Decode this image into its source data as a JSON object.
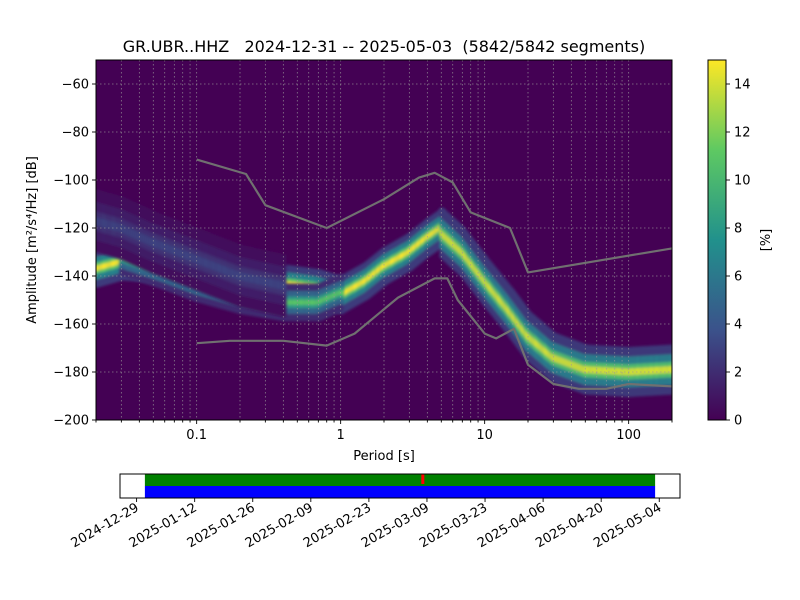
{
  "chart_data": [
    {
      "type": "heatmap",
      "title": "GR.UBR..HHZ   2024-12-31 -- 2025-05-03  (5842/5842 segments)",
      "xlabel": "Period [s]",
      "ylabel": "Amplitude [m²/s⁴/Hz] [dB]",
      "x_scale": "log",
      "xlim": [
        0.02,
        200
      ],
      "ylim": [
        -200,
        -50
      ],
      "x_ticks": [
        {
          "value": 0.1,
          "label": "0.1"
        },
        {
          "value": 1,
          "label": "1"
        },
        {
          "value": 10,
          "label": "10"
        },
        {
          "value": 100,
          "label": "100"
        }
      ],
      "y_ticks": [
        {
          "value": -60,
          "label": "−60"
        },
        {
          "value": -80,
          "label": "−80"
        },
        {
          "value": -100,
          "label": "−100"
        },
        {
          "value": -120,
          "label": "−120"
        },
        {
          "value": -140,
          "label": "−140"
        },
        {
          "value": -160,
          "label": "−160"
        },
        {
          "value": -180,
          "label": "−180"
        },
        {
          "value": -200,
          "label": "−200"
        }
      ],
      "grid": true,
      "colorbar": {
        "label": "[%]",
        "range": [
          0,
          15
        ],
        "ticks": [
          {
            "value": 0,
            "label": "0"
          },
          {
            "value": 2,
            "label": "2"
          },
          {
            "value": 4,
            "label": "4"
          },
          {
            "value": 6,
            "label": "6"
          },
          {
            "value": 8,
            "label": "8"
          },
          {
            "value": 10,
            "label": "10"
          },
          {
            "value": 12,
            "label": "12"
          },
          {
            "value": 14,
            "label": "14"
          }
        ],
        "colormap": [
          "#440154",
          "#3b528b",
          "#21918c",
          "#5ec962",
          "#fde725"
        ]
      },
      "density_ridges": [
        {
          "points": [
            [
              0.02,
              -137
            ],
            [
              0.03,
              -134
            ],
            [
              0.05,
              -135
            ],
            [
              0.1,
              -138
            ],
            [
              0.2,
              -141
            ],
            [
              0.4,
              -143
            ],
            [
              0.7,
              -145
            ],
            [
              1,
              -148
            ],
            [
              1.5,
              -142
            ],
            [
              2,
              -136
            ],
            [
              3,
              -130
            ],
            [
              4,
              -124
            ],
            [
              5,
              -120
            ]
          ],
          "peak_percent": 15,
          "spread_db": 3
        },
        {
          "points": [
            [
              0.03,
              -132
            ],
            [
              0.06,
              -138
            ],
            [
              0.1,
              -143
            ],
            [
              0.2,
              -148
            ],
            [
              0.4,
              -151
            ],
            [
              0.7,
              -151
            ],
            [
              1,
              -147
            ]
          ],
          "peak_percent": 11,
          "spread_db": 3
        },
        {
          "points": [
            [
              0.02,
              -117
            ],
            [
              0.03,
              -120
            ],
            [
              0.05,
              -126
            ],
            [
              0.1,
              -133
            ],
            [
              0.2,
              -140
            ],
            [
              0.4,
              -144
            ]
          ],
          "peak_percent": 3,
          "spread_db": 5
        },
        {
          "points": [
            [
              5,
              -122
            ],
            [
              7,
              -130
            ],
            [
              10,
              -142
            ],
            [
              15,
              -155
            ],
            [
              20,
              -165
            ],
            [
              30,
              -174
            ],
            [
              50,
              -179
            ],
            [
              100,
              -180
            ],
            [
              200,
              -179
            ]
          ],
          "peak_percent": 14,
          "spread_db": 4
        }
      ],
      "series": [
        {
          "type": "line",
          "color": "#707070",
          "x": [
            0.1,
            0.22,
            0.3,
            0.8,
            2,
            3.5,
            4.5,
            6,
            8,
            15,
            20,
            200
          ],
          "y": [
            -91.5,
            -97.5,
            -110.5,
            -120,
            -108,
            -99,
            -97,
            -101,
            -113.5,
            -120,
            -138.5,
            -128.5
          ]
        },
        {
          "type": "line",
          "color": "#707070",
          "x": [
            0.1,
            0.17,
            0.4,
            0.8,
            1.25,
            2.5,
            4.5,
            5.5,
            6.5,
            10,
            12,
            16,
            20,
            30,
            45,
            70,
            100,
            200
          ],
          "y": [
            -168,
            -167,
            -167,
            -169,
            -164,
            -149,
            -141,
            -141,
            -150,
            -164,
            -166,
            -162,
            -177,
            -185,
            -187,
            -187,
            -185,
            -186
          ]
        }
      ]
    },
    {
      "type": "timeline",
      "x_ticks": [
        "2024-12-29",
        "2025-01-12",
        "2025-01-26",
        "2025-02-09",
        "2025-02-23",
        "2025-03-09",
        "2025-03-23",
        "2025-04-06",
        "2025-04-20",
        "2025-05-04"
      ],
      "xlim": [
        "2024-12-25",
        "2025-05-09"
      ],
      "bars": [
        {
          "start": "2024-12-31",
          "end": "2025-05-03",
          "color": "#008000",
          "row": "top"
        },
        {
          "start": "2024-12-31",
          "end": "2025-05-03",
          "color": "#0000ff",
          "row": "bottom"
        }
      ],
      "markers": [
        {
          "date": "2025-03-08",
          "color": "#ff0000"
        }
      ]
    }
  ]
}
